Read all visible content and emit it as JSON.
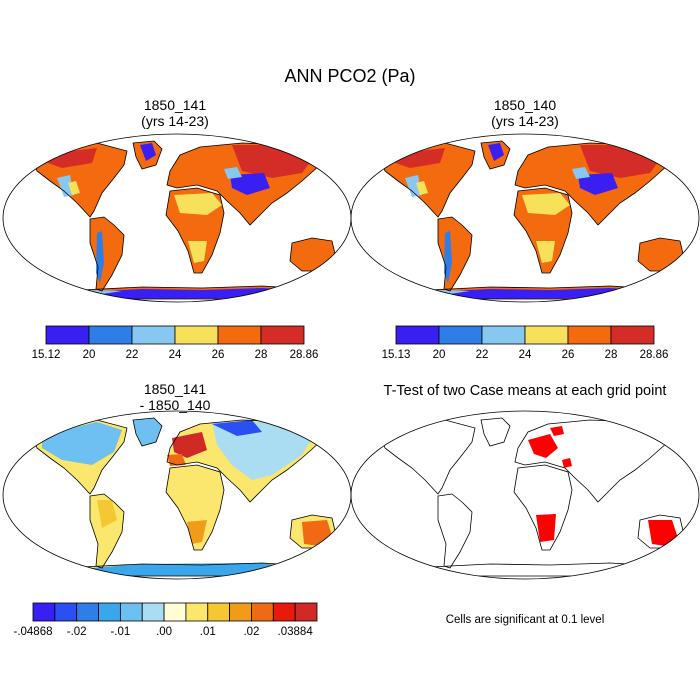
{
  "title": "ANN PCO2 (Pa)",
  "panels": [
    {
      "title_line1": "1850_141",
      "title_line2": "(yrs 14-23)"
    },
    {
      "title_line1": "1850_140",
      "title_line2": "(yrs 14-23)"
    },
    {
      "title_line1": "1850_141",
      "title_line2": "- 1850_140"
    },
    {
      "title_line1": "T-Test of two Case means at each grid point",
      "title_line2": ""
    }
  ],
  "significance_note": "Cells are significant at 0.1 level",
  "chart_data": [
    {
      "type": "heatmap",
      "title": "1850_141 (yrs 14-23)",
      "projection": "Robinson",
      "colorbar": {
        "levels": [
          "15.12",
          "20",
          "22",
          "24",
          "26",
          "28",
          "28.86"
        ],
        "colors": [
          "#3a1ff2",
          "#2f7ee8",
          "#88c8f0",
          "#f7e15a",
          "#f36a0f",
          "#d42d27"
        ]
      }
    },
    {
      "type": "heatmap",
      "title": "1850_140 (yrs 14-23)",
      "projection": "Robinson",
      "colorbar": {
        "levels": [
          "15.13",
          "20",
          "22",
          "24",
          "26",
          "28",
          "28.86"
        ],
        "colors": [
          "#3a1ff2",
          "#2f7ee8",
          "#88c8f0",
          "#f7e15a",
          "#f36a0f",
          "#d42d27"
        ]
      }
    },
    {
      "type": "heatmap",
      "title": "1850_141 - 1850_140",
      "projection": "Robinson",
      "colorbar": {
        "levels": [
          "-.04868",
          "",
          "-.02",
          "",
          "-.01",
          "",
          ".00",
          "",
          ".01",
          "",
          ".02",
          "",
          ".03884"
        ],
        "colors": [
          "#3a1ff2",
          "#2b4ff0",
          "#2f7ee8",
          "#3aa6ec",
          "#6fc0f2",
          "#aadcf2",
          "#fffcd6",
          "#fbe66e",
          "#f5c732",
          "#f19b1a",
          "#ef6a12",
          "#e81a0c",
          "#cf2a26"
        ]
      }
    },
    {
      "type": "heatmap",
      "title": "T-Test of two Case means at each grid point",
      "projection": "Robinson",
      "significant_color": "#ff0000",
      "note": "Cells are significant at 0.1 level"
    }
  ]
}
